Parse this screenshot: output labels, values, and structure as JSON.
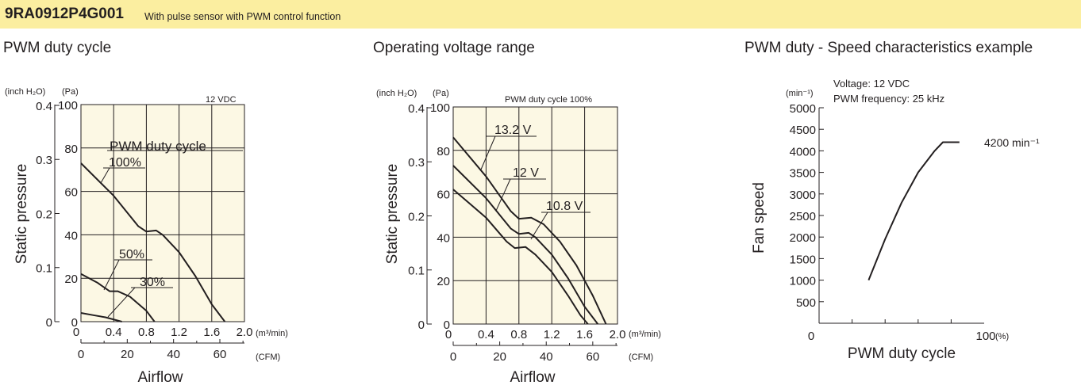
{
  "header": {
    "model": "9RA0912P4G001",
    "description": "With pulse sensor with PWM control function"
  },
  "colors": {
    "header_bg": "#fbeea0",
    "plot_bg": "#fcf8e4",
    "ink": "#231f20"
  },
  "chart_data": [
    {
      "type": "line",
      "title": "PWM duty cycle",
      "condition": "12 VDC",
      "annotation": "PWM duty cycle",
      "xlabel": "Airflow",
      "ylabel": "Static pressure",
      "x_unit_primary": "(m³/min)",
      "x_unit_secondary": "(CFM)",
      "y_unit_primary": "(Pa)",
      "y_unit_secondary": "(inch H₂O)",
      "xlim": [
        0,
        2.0
      ],
      "ylim": [
        0,
        100
      ],
      "x_ticks": [
        "0",
        "0.4",
        "0.8",
        "1.2",
        "1.6",
        "2.0"
      ],
      "x_ticks_secondary": [
        "0",
        "20",
        "40",
        "60"
      ],
      "y_ticks": [
        "0",
        "20",
        "40",
        "60",
        "80",
        "100"
      ],
      "y_ticks_secondary": [
        "0",
        "0.1",
        "0.2",
        "0.3",
        "0.4"
      ],
      "grid": true,
      "series": [
        {
          "name": "100%",
          "points": [
            [
              0,
              73
            ],
            [
              0.4,
              58
            ],
            [
              0.7,
              44
            ],
            [
              0.8,
              41.5
            ],
            [
              0.92,
              42
            ],
            [
              1.0,
              40
            ],
            [
              1.2,
              32
            ],
            [
              1.4,
              21
            ],
            [
              1.6,
              8
            ],
            [
              1.76,
              0
            ]
          ]
        },
        {
          "name": "50%",
          "points": [
            [
              0,
              22
            ],
            [
              0.2,
              18
            ],
            [
              0.35,
              14
            ],
            [
              0.45,
              14
            ],
            [
              0.6,
              11.5
            ],
            [
              0.8,
              5
            ],
            [
              0.9,
              0
            ]
          ]
        },
        {
          "name": "30%",
          "points": [
            [
              0,
              4
            ],
            [
              0.15,
              3
            ],
            [
              0.3,
              2
            ],
            [
              0.5,
              0
            ]
          ]
        }
      ]
    },
    {
      "type": "line",
      "title": "Operating voltage range",
      "condition": "PWM duty cycle 100%",
      "xlabel": "Airflow",
      "ylabel": "Static pressure",
      "x_unit_primary": "(m³/min)",
      "x_unit_secondary": "(CFM)",
      "y_unit_primary": "(Pa)",
      "y_unit_secondary": "(inch H₂O)",
      "xlim": [
        0,
        2.0
      ],
      "ylim": [
        0,
        100
      ],
      "x_ticks": [
        "0",
        "0.4",
        "0.8",
        "1.2",
        "1.6",
        "2.0"
      ],
      "x_ticks_secondary": [
        "0",
        "20",
        "40",
        "60"
      ],
      "y_ticks": [
        "0",
        "20",
        "40",
        "60",
        "80",
        "100"
      ],
      "y_ticks_secondary": [
        "0",
        "0.1",
        "0.2",
        "0.3",
        "0.4"
      ],
      "grid": true,
      "series": [
        {
          "name": "13.2 V",
          "points": [
            [
              0,
              86
            ],
            [
              0.4,
              68
            ],
            [
              0.7,
              52
            ],
            [
              0.8,
              48.5
            ],
            [
              0.95,
              49
            ],
            [
              1.1,
              46
            ],
            [
              1.3,
              38
            ],
            [
              1.5,
              27
            ],
            [
              1.7,
              13
            ],
            [
              1.86,
              0
            ]
          ]
        },
        {
          "name": "12 V",
          "points": [
            [
              0,
              73
            ],
            [
              0.4,
              58
            ],
            [
              0.7,
              44
            ],
            [
              0.8,
              41.5
            ],
            [
              0.92,
              42
            ],
            [
              1.0,
              40
            ],
            [
              1.2,
              32
            ],
            [
              1.4,
              21
            ],
            [
              1.6,
              8
            ],
            [
              1.76,
              0
            ]
          ]
        },
        {
          "name": "10.8 V",
          "points": [
            [
              0,
              62
            ],
            [
              0.4,
              49
            ],
            [
              0.65,
              38
            ],
            [
              0.75,
              35
            ],
            [
              0.88,
              35.5
            ],
            [
              1.0,
              32
            ],
            [
              1.2,
              24
            ],
            [
              1.4,
              13
            ],
            [
              1.55,
              4
            ],
            [
              1.64,
              0
            ]
          ]
        }
      ]
    },
    {
      "type": "line",
      "title": "PWM duty - Speed characteristics example",
      "conditions": [
        "Voltage: 12 VDC",
        "PWM frequency: 25 kHz"
      ],
      "xlabel": "PWM duty cycle",
      "ylabel": "Fan speed",
      "x_unit": "(%)",
      "y_unit": "(min⁻¹)",
      "xlim": [
        0,
        100
      ],
      "ylim": [
        0,
        5000
      ],
      "x_ticks": [
        "0",
        "100"
      ],
      "y_ticks": [
        "500",
        "1000",
        "1500",
        "2000",
        "2500",
        "3000",
        "3500",
        "4000",
        "4500",
        "5000"
      ],
      "grid": false,
      "max_label": "4200 min⁻¹",
      "series": [
        {
          "points": [
            [
              30,
              1000
            ],
            [
              40,
              1950
            ],
            [
              50,
              2800
            ],
            [
              60,
              3500
            ],
            [
              70,
              4000
            ],
            [
              75,
              4200
            ],
            [
              85,
              4200
            ]
          ]
        }
      ]
    }
  ]
}
